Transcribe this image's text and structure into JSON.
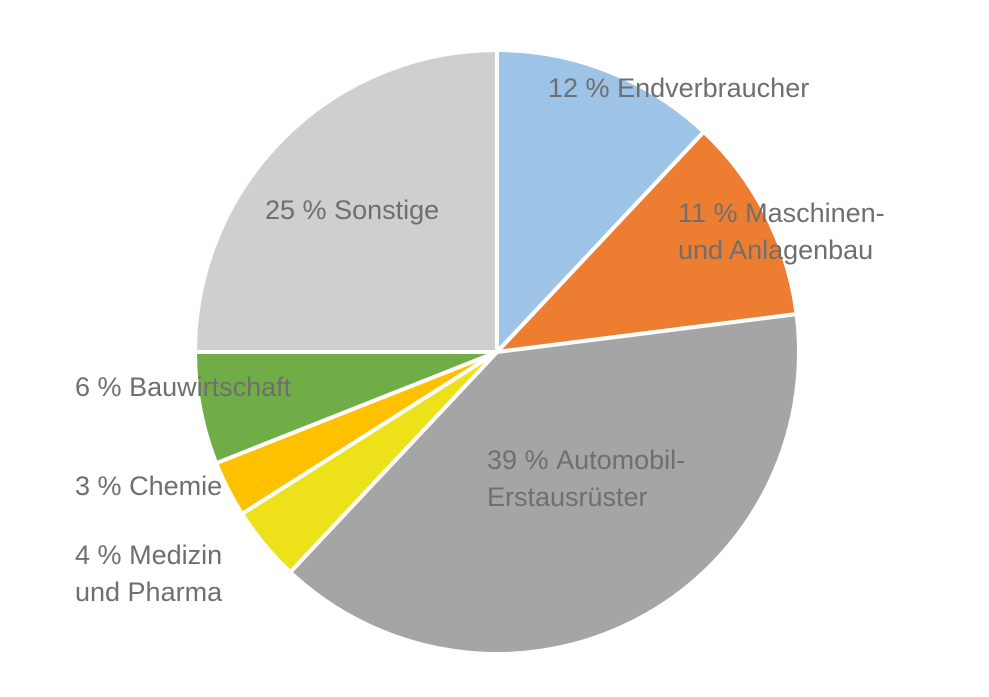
{
  "chart_data": {
    "type": "pie",
    "categories": [
      "Endverbraucher",
      "Maschinen- und Anlagenbau",
      "Automobil-Erstausrüster",
      "Medizin und Pharma",
      "Chemie",
      "Bauwirtschaft",
      "Sonstige"
    ],
    "values": [
      12,
      11,
      39,
      4,
      3,
      6,
      25
    ],
    "value_labels": [
      "12 %",
      "11 %",
      "39 %",
      "4 %",
      "3 %",
      "6 %",
      "25 %"
    ],
    "colors": [
      "#9dc3e6",
      "#ed7d31",
      "#a5a5a5",
      "#ede11a",
      "#ffc000",
      "#70ad47",
      "#d0cece"
    ]
  }
}
